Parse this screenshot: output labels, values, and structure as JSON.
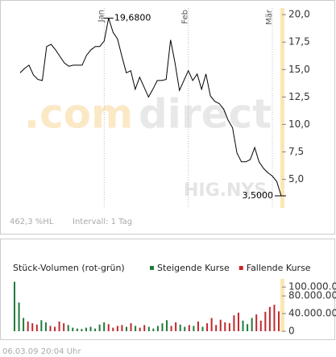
{
  "chart_data": [
    {
      "type": "line",
      "categories": [
        null,
        null,
        null,
        null,
        null,
        null,
        null,
        null,
        null,
        null,
        null,
        null,
        null,
        null,
        null,
        null,
        null,
        null,
        null,
        "Jan",
        null,
        null,
        null,
        null,
        null,
        null,
        null,
        null,
        null,
        null,
        null,
        null,
        null,
        null,
        null,
        null,
        null,
        null,
        "Feb",
        null,
        null,
        null,
        null,
        null,
        null,
        null,
        null,
        null,
        null,
        null,
        null,
        null,
        null,
        null,
        null,
        null,
        null,
        "Mär",
        null,
        null
      ],
      "values": [
        14.7,
        15.1,
        15.4,
        14.5,
        14.1,
        14.0,
        17.1,
        17.3,
        16.8,
        16.2,
        15.6,
        15.3,
        15.4,
        15.4,
        15.4,
        16.3,
        16.8,
        17.1,
        17.1,
        17.6,
        19.68,
        18.4,
        17.8,
        16.2,
        14.7,
        14.9,
        13.2,
        14.3,
        13.4,
        12.5,
        13.2,
        14.0,
        14.0,
        14.1,
        17.7,
        15.6,
        13.1,
        14.0,
        14.9,
        14.0,
        14.6,
        13.2,
        14.6,
        12.6,
        12.1,
        11.9,
        11.4,
        10.4,
        9.7,
        7.4,
        6.6,
        6.6,
        6.8,
        7.9,
        6.6,
        6.0,
        5.6,
        5.3,
        4.8,
        3.5
      ],
      "color": "#000000",
      "ylim": [
        2.4,
        20.6
      ],
      "yticks": [
        {
          "value": 5,
          "label": "5,0"
        },
        {
          "value": 7.5,
          "label": "7,5"
        },
        {
          "value": 10,
          "label": "10,0"
        },
        {
          "value": 12.5,
          "label": "12,5"
        },
        {
          "value": 15,
          "label": "15,0"
        },
        {
          "value": 17.5,
          "label": "17,5"
        },
        {
          "value": 20,
          "label": "20,0"
        }
      ],
      "max_label": "19,6800",
      "min_label": "3,5000",
      "watermark": [
        ".com",
        "direct"
      ],
      "symbol": "HIG.NYS",
      "range_note": "462,3 %HL",
      "interval": "Intervall: 1 Tag"
    },
    {
      "type": "bar",
      "title": "Stück-Volumen (rot-grün)",
      "series": [
        {
          "name": "Steigende Kurse",
          "color": "#1e7a3c",
          "values": [
            112000000,
            65000000,
            30000000,
            null,
            null,
            null,
            25000000,
            20000000,
            null,
            null,
            null,
            null,
            14000000,
            8000000,
            6000000,
            5000000,
            8000000,
            10000000,
            6000000,
            15000000,
            20000000,
            null,
            null,
            null,
            null,
            10000000,
            null,
            12000000,
            null,
            null,
            10000000,
            6000000,
            12000000,
            18000000,
            25000000,
            null,
            null,
            15000000,
            10000000,
            null,
            12000000,
            null,
            10000000,
            null,
            null,
            null,
            null,
            null,
            null,
            null,
            null,
            24000000,
            16000000,
            30000000,
            null,
            null,
            null,
            null,
            null,
            null
          ]
        },
        {
          "name": "Fallende Kurse",
          "color": "#c0282d",
          "values": [
            null,
            null,
            null,
            22000000,
            18000000,
            15000000,
            null,
            null,
            12000000,
            10000000,
            22000000,
            18000000,
            null,
            null,
            null,
            null,
            null,
            null,
            null,
            null,
            null,
            16000000,
            8000000,
            12000000,
            14000000,
            null,
            18000000,
            null,
            8000000,
            14000000,
            null,
            null,
            null,
            null,
            null,
            12000000,
            20000000,
            null,
            null,
            14000000,
            null,
            22000000,
            null,
            18000000,
            30000000,
            14000000,
            26000000,
            20000000,
            18000000,
            36000000,
            42000000,
            null,
            null,
            null,
            38000000,
            24000000,
            44000000,
            55000000,
            60000000,
            45000000
          ]
        }
      ],
      "ylim": [
        0,
        115000000
      ],
      "yticks": [
        {
          "value": 0,
          "label": "0"
        },
        {
          "value": 40000000,
          "label": "40.000.000"
        },
        {
          "value": 80000000,
          "label": "80.000.000"
        },
        {
          "value": 100000000,
          "label": "100.000.000"
        }
      ]
    }
  ],
  "footer": "06.03.09   20:04 Uhr"
}
